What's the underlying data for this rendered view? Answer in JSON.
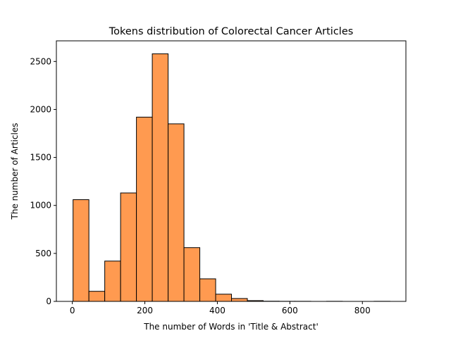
{
  "chart_data": {
    "type": "bar",
    "title": "Tokens distribution of Colorectal Cancer Articles",
    "xlabel": "The number of Words in  'Title & Abstract'",
    "ylabel": "The number of Articles",
    "xlim": [
      -44,
      920
    ],
    "ylim": [
      0,
      2715
    ],
    "xticks": [
      0,
      200,
      400,
      600,
      800
    ],
    "yticks": [
      0,
      500,
      1000,
      1500,
      2000,
      2500
    ],
    "bar_color": "#ff9a50",
    "edge_color": "#000000",
    "bins": [
      {
        "x0": 2,
        "x1": 45.7,
        "value": 1060
      },
      {
        "x0": 45.7,
        "x1": 89.4,
        "value": 105
      },
      {
        "x0": 89.4,
        "x1": 133.1,
        "value": 420
      },
      {
        "x0": 133.1,
        "x1": 176.8,
        "value": 1130
      },
      {
        "x0": 176.8,
        "x1": 220.5,
        "value": 1920
      },
      {
        "x0": 220.5,
        "x1": 264.2,
        "value": 2580
      },
      {
        "x0": 264.2,
        "x1": 307.9,
        "value": 1850
      },
      {
        "x0": 307.9,
        "x1": 351.6,
        "value": 560
      },
      {
        "x0": 351.6,
        "x1": 395.3,
        "value": 235
      },
      {
        "x0": 395.3,
        "x1": 439,
        "value": 75
      },
      {
        "x0": 439,
        "x1": 482.7,
        "value": 30
      },
      {
        "x0": 482.7,
        "x1": 526.4,
        "value": 8
      },
      {
        "x0": 526.4,
        "x1": 570.1,
        "value": 2
      },
      {
        "x0": 570.1,
        "x1": 613.8,
        "value": 1
      },
      {
        "x0": 613.8,
        "x1": 657.5,
        "value": 1
      },
      {
        "x0": 657.5,
        "x1": 701.2,
        "value": 0
      },
      {
        "x0": 701.2,
        "x1": 744.9,
        "value": 1
      },
      {
        "x0": 744.9,
        "x1": 788.6,
        "value": 0
      },
      {
        "x0": 788.6,
        "x1": 832.3,
        "value": 0
      },
      {
        "x0": 832.3,
        "x1": 876,
        "value": 1
      }
    ]
  }
}
